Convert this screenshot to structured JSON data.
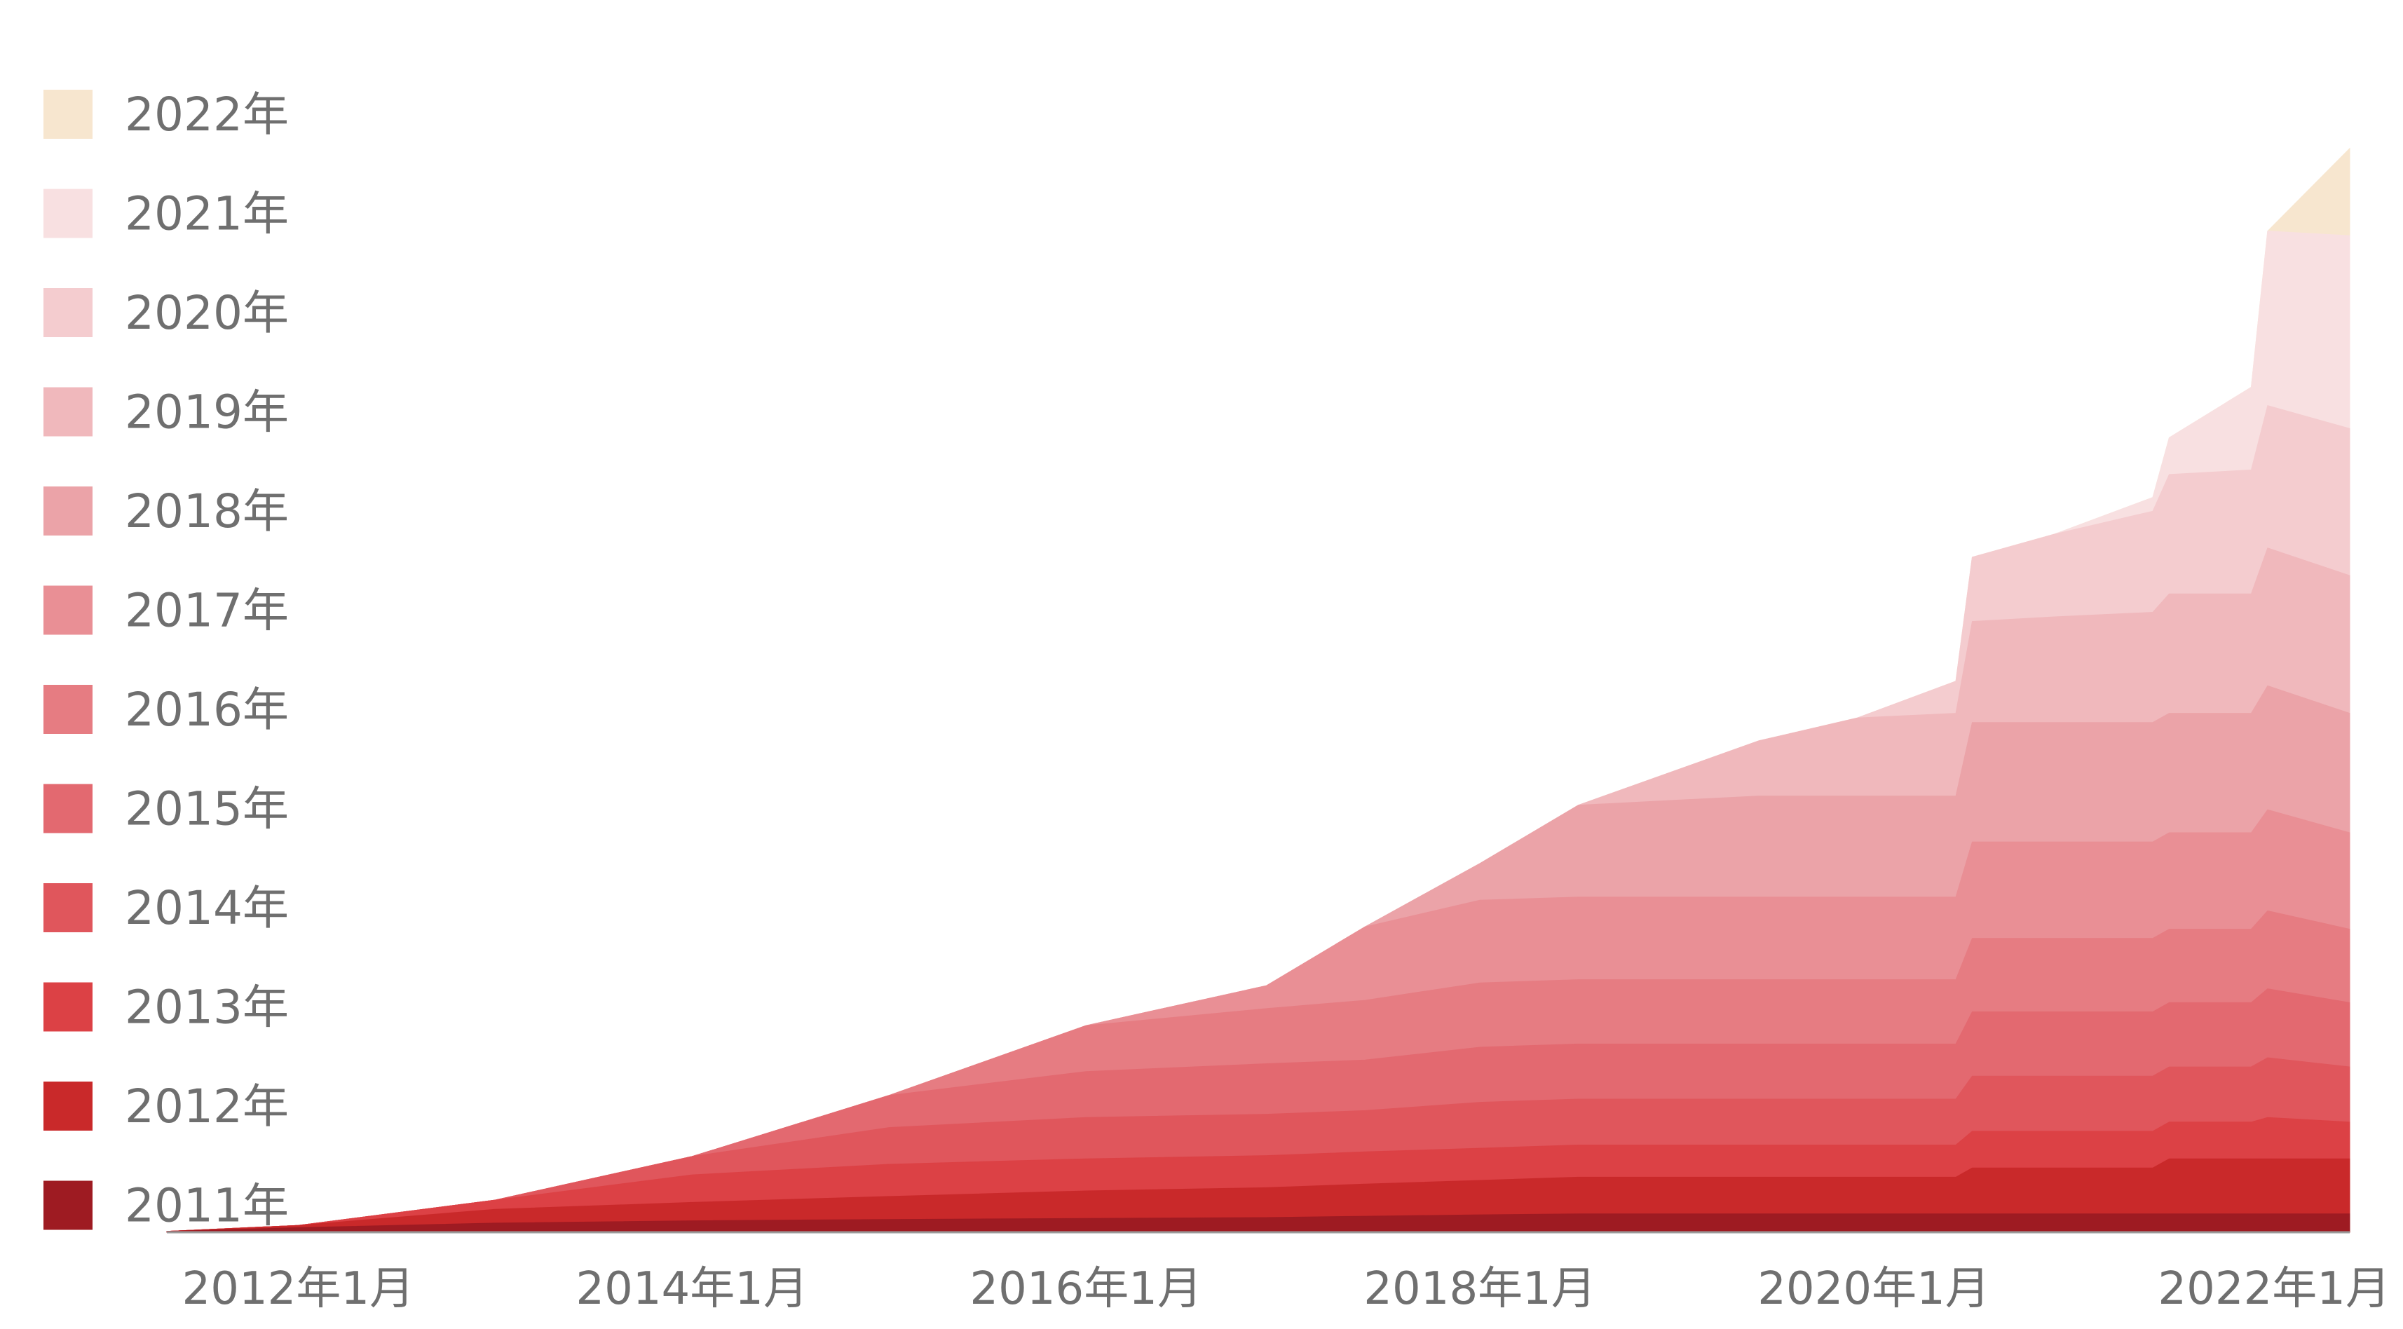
{
  "chart_data": {
    "type": "area",
    "stacked": true,
    "title": "",
    "xlabel": "",
    "ylabel": "",
    "x_range": [
      "2011-05",
      "2022-06"
    ],
    "x_ticks": [
      "2012年1月",
      "2014年1月",
      "2016年1月",
      "2018年1月",
      "2020年1月",
      "2022年1月"
    ],
    "y_axis_visible": false,
    "grid": false,
    "legend_placement": "left",
    "legend_order": "newest-top",
    "x": [
      "2011-05",
      "2012-01",
      "2013-01",
      "2014-01",
      "2015-01",
      "2016-01",
      "2016-12",
      "2017-06",
      "2018-01",
      "2018-07",
      "2019-06",
      "2019-12",
      "2020-06",
      "2020-07",
      "2020-12",
      "2021-06",
      "2021-07",
      "2021-12",
      "2022-01",
      "2022-06"
    ],
    "series": [
      {
        "name": "2011年",
        "color": "#9e1b22",
        "values": [
          0.2,
          1,
          2,
          2.5,
          2.8,
          3,
          3.2,
          3.5,
          3.8,
          4,
          4,
          4,
          4,
          4,
          4,
          4,
          4,
          4,
          4,
          4
        ]
      },
      {
        "name": "2012年",
        "color": "#c9292a",
        "values": [
          0,
          0.5,
          3,
          4,
          5,
          6,
          6.5,
          7,
          7.5,
          8,
          8,
          8,
          8,
          10,
          10,
          10,
          12,
          12,
          12,
          12
        ]
      },
      {
        "name": "2013年",
        "color": "#dc4145",
        "values": [
          0,
          0,
          2,
          6,
          7,
          7,
          7,
          7,
          7,
          7,
          7,
          7,
          7,
          8,
          8,
          8,
          8,
          8,
          9,
          8
        ]
      },
      {
        "name": "2014年",
        "color": "#e0565c",
        "values": [
          0,
          0,
          0,
          4,
          8,
          9,
          9,
          9,
          10,
          10,
          10,
          10,
          10,
          12,
          12,
          12,
          12,
          12,
          13,
          12
        ]
      },
      {
        "name": "2015年",
        "color": "#e36970",
        "values": [
          0,
          0,
          0,
          0,
          7,
          10,
          11,
          11,
          12,
          12,
          12,
          12,
          12,
          14,
          14,
          14,
          14,
          14,
          15,
          14
        ]
      },
      {
        "name": "2016年",
        "color": "#e67c82",
        "values": [
          0,
          0,
          0,
          0,
          0,
          10,
          12,
          13,
          14,
          14,
          14,
          14,
          14,
          16,
          16,
          16,
          16,
          16,
          17,
          16
        ]
      },
      {
        "name": "2017年",
        "color": "#e98f95",
        "values": [
          0,
          0,
          0,
          0,
          0,
          0,
          5,
          16,
          18,
          18,
          18,
          18,
          18,
          21,
          21,
          21,
          21,
          21,
          22,
          21
        ]
      },
      {
        "name": "2018年",
        "color": "#eba3a8",
        "values": [
          0,
          0,
          0,
          0,
          0,
          0,
          0,
          0,
          8,
          20,
          22,
          22,
          22,
          26,
          26,
          26,
          26,
          26,
          27,
          26
        ]
      },
      {
        "name": "2019年",
        "color": "#f0b8bc",
        "values": [
          0,
          0,
          0,
          0,
          0,
          0,
          0,
          0,
          0,
          0,
          12,
          17,
          18,
          22,
          23,
          24,
          26,
          26,
          30,
          30
        ]
      },
      {
        "name": "2020年",
        "color": "#f4cccf",
        "values": [
          0,
          0,
          0,
          0,
          0,
          0,
          0,
          0,
          0,
          0,
          0,
          0,
          7,
          14,
          18,
          22,
          26,
          27,
          31,
          32
        ]
      },
      {
        "name": "2021年",
        "color": "#f8e0e1",
        "values": [
          0,
          0,
          0,
          0,
          0,
          0,
          0,
          0,
          0,
          0,
          0,
          0,
          0,
          0,
          0,
          3,
          8,
          18,
          38,
          42
        ]
      },
      {
        "name": "2022年",
        "color": "#f7e6cf",
        "values": [
          0,
          0,
          0,
          0,
          0,
          0,
          0,
          0,
          0,
          0,
          0,
          0,
          0,
          0,
          0,
          0,
          0,
          0,
          0,
          19
        ]
      }
    ]
  }
}
